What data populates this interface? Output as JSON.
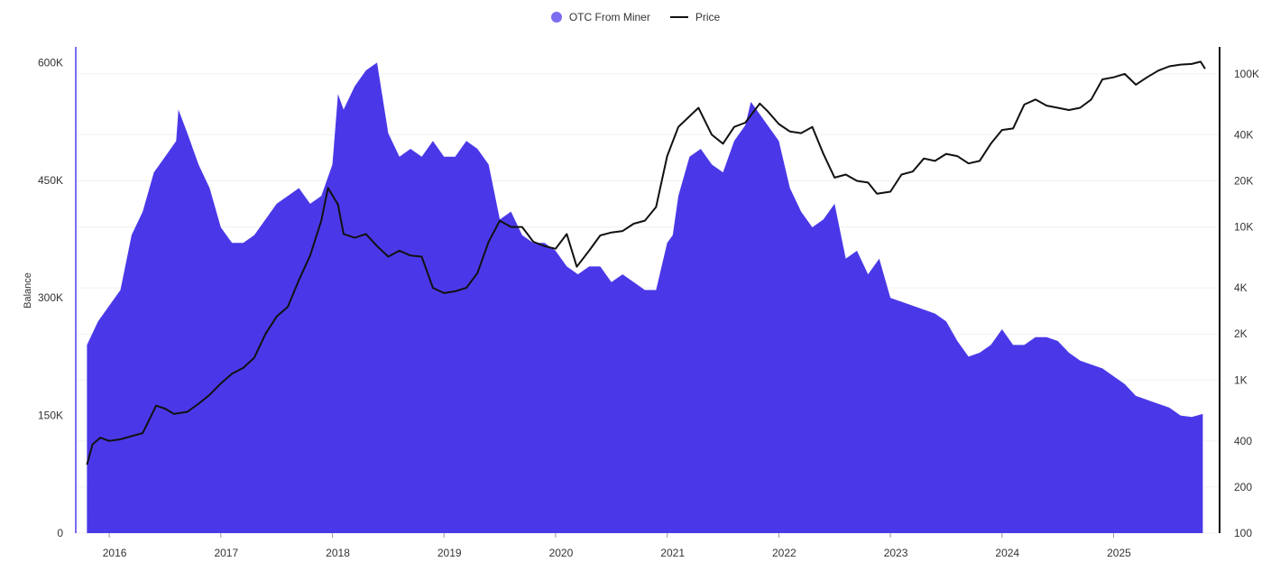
{
  "legend": [
    {
      "name": "OTC From Miner",
      "color": "#7b6cf0",
      "shape": "circle"
    },
    {
      "name": "Price",
      "color": "#111111",
      "shape": "line"
    }
  ],
  "chart_data": {
    "type": "area",
    "ylabel": "Balance",
    "x_ticks": [
      "2016",
      "2017",
      "2018",
      "2019",
      "2020",
      "2021",
      "2022",
      "2023",
      "2024",
      "2025"
    ],
    "x_range": [
      2015.7,
      2025.95
    ],
    "y_left": {
      "range": [
        0,
        620000
      ],
      "ticks": [
        0,
        150000,
        300000,
        450000,
        600000
      ],
      "tick_labels": [
        "0",
        "150K",
        "300K",
        "450K",
        "600K"
      ]
    },
    "y_right": {
      "scale": "log",
      "range": [
        100,
        150000
      ],
      "ticks": [
        100,
        200,
        400,
        1000,
        2000,
        4000,
        10000,
        20000,
        40000,
        100000
      ],
      "tick_labels": [
        "100",
        "200",
        "400",
        "1K",
        "2K",
        "4K",
        "10K",
        "20K",
        "40K",
        "100K"
      ]
    },
    "series": [
      {
        "name": "OTC From Miner",
        "axis": "left",
        "color": "#4a38e8",
        "x": [
          2015.8,
          2015.9,
          2016.0,
          2016.1,
          2016.2,
          2016.3,
          2016.4,
          2016.5,
          2016.6,
          2016.62,
          2016.7,
          2016.8,
          2016.9,
          2017.0,
          2017.1,
          2017.2,
          2017.3,
          2017.4,
          2017.5,
          2017.6,
          2017.7,
          2017.8,
          2017.9,
          2018.0,
          2018.05,
          2018.1,
          2018.2,
          2018.3,
          2018.4,
          2018.5,
          2018.6,
          2018.7,
          2018.8,
          2018.9,
          2019.0,
          2019.1,
          2019.2,
          2019.3,
          2019.4,
          2019.5,
          2019.6,
          2019.7,
          2019.8,
          2019.9,
          2020.0,
          2020.1,
          2020.2,
          2020.3,
          2020.4,
          2020.5,
          2020.6,
          2020.7,
          2020.8,
          2020.9,
          2021.0,
          2021.05,
          2021.1,
          2021.2,
          2021.3,
          2021.4,
          2021.5,
          2021.6,
          2021.7,
          2021.75,
          2021.8,
          2021.9,
          2022.0,
          2022.1,
          2022.2,
          2022.3,
          2022.4,
          2022.5,
          2022.6,
          2022.7,
          2022.8,
          2022.9,
          2023.0,
          2023.1,
          2023.2,
          2023.3,
          2023.4,
          2023.5,
          2023.6,
          2023.7,
          2023.8,
          2023.9,
          2024.0,
          2024.1,
          2024.2,
          2024.3,
          2024.4,
          2024.5,
          2024.6,
          2024.7,
          2024.8,
          2024.9,
          2025.0,
          2025.1,
          2025.2,
          2025.3,
          2025.4,
          2025.5,
          2025.6,
          2025.7,
          2025.8
        ],
        "values": [
          240000,
          270000,
          290000,
          310000,
          380000,
          410000,
          460000,
          480000,
          500000,
          540000,
          510000,
          470000,
          440000,
          390000,
          370000,
          370000,
          380000,
          400000,
          420000,
          430000,
          440000,
          420000,
          430000,
          470000,
          560000,
          540000,
          570000,
          590000,
          600000,
          510000,
          480000,
          490000,
          480000,
          500000,
          480000,
          480000,
          500000,
          490000,
          470000,
          400000,
          410000,
          380000,
          370000,
          370000,
          360000,
          340000,
          330000,
          340000,
          340000,
          320000,
          330000,
          320000,
          310000,
          310000,
          370000,
          380000,
          430000,
          480000,
          490000,
          470000,
          460000,
          500000,
          520000,
          550000,
          540000,
          520000,
          500000,
          440000,
          410000,
          390000,
          400000,
          420000,
          350000,
          360000,
          330000,
          350000,
          300000,
          295000,
          290000,
          285000,
          280000,
          270000,
          245000,
          225000,
          230000,
          240000,
          260000,
          240000,
          240000,
          250000,
          250000,
          245000,
          230000,
          220000,
          215000,
          210000,
          200000,
          190000,
          175000,
          170000,
          165000,
          160000,
          150000,
          148000,
          152000
        ]
      },
      {
        "name": "Price",
        "axis": "right",
        "color": "#111111",
        "x": [
          2015.8,
          2015.85,
          2015.92,
          2016.0,
          2016.1,
          2016.2,
          2016.3,
          2016.42,
          2016.5,
          2016.58,
          2016.7,
          2016.8,
          2016.9,
          2017.0,
          2017.1,
          2017.2,
          2017.3,
          2017.4,
          2017.5,
          2017.6,
          2017.7,
          2017.8,
          2017.9,
          2017.96,
          2018.05,
          2018.1,
          2018.2,
          2018.3,
          2018.4,
          2018.5,
          2018.6,
          2018.7,
          2018.8,
          2018.9,
          2019.0,
          2019.1,
          2019.2,
          2019.3,
          2019.4,
          2019.5,
          2019.6,
          2019.7,
          2019.8,
          2019.9,
          2020.0,
          2020.1,
          2020.19,
          2020.3,
          2020.4,
          2020.5,
          2020.6,
          2020.7,
          2020.8,
          2020.9,
          2021.0,
          2021.1,
          2021.28,
          2021.4,
          2021.5,
          2021.6,
          2021.7,
          2021.83,
          2021.9,
          2022.0,
          2022.1,
          2022.2,
          2022.3,
          2022.4,
          2022.5,
          2022.6,
          2022.7,
          2022.8,
          2022.88,
          2023.0,
          2023.1,
          2023.2,
          2023.3,
          2023.4,
          2023.5,
          2023.6,
          2023.7,
          2023.8,
          2023.9,
          2024.0,
          2024.1,
          2024.2,
          2024.3,
          2024.4,
          2024.5,
          2024.6,
          2024.7,
          2024.8,
          2024.9,
          2025.0,
          2025.1,
          2025.2,
          2025.3,
          2025.4,
          2025.5,
          2025.6,
          2025.7,
          2025.78,
          2025.82
        ],
        "values": [
          280,
          380,
          420,
          400,
          410,
          430,
          450,
          680,
          650,
          600,
          620,
          700,
          800,
          950,
          1100,
          1200,
          1400,
          2000,
          2600,
          3000,
          4500,
          6500,
          11000,
          18000,
          14000,
          9000,
          8500,
          9000,
          7500,
          6400,
          7000,
          6500,
          6400,
          4000,
          3700,
          3800,
          4000,
          5000,
          8000,
          11000,
          10000,
          10000,
          8000,
          7500,
          7200,
          9000,
          5500,
          7000,
          8800,
          9200,
          9400,
          10500,
          11000,
          13500,
          29000,
          45000,
          60000,
          40000,
          35000,
          45000,
          48000,
          64000,
          57000,
          47000,
          42000,
          41000,
          45000,
          30000,
          21000,
          22000,
          20000,
          19500,
          16500,
          17000,
          22000,
          23000,
          28000,
          27000,
          30000,
          29000,
          26000,
          27000,
          35000,
          43000,
          44000,
          63000,
          68000,
          62000,
          60000,
          58000,
          60000,
          68000,
          92000,
          95000,
          100000,
          85000,
          95000,
          105000,
          112000,
          115000,
          116000,
          120000,
          108000
        ]
      }
    ]
  }
}
